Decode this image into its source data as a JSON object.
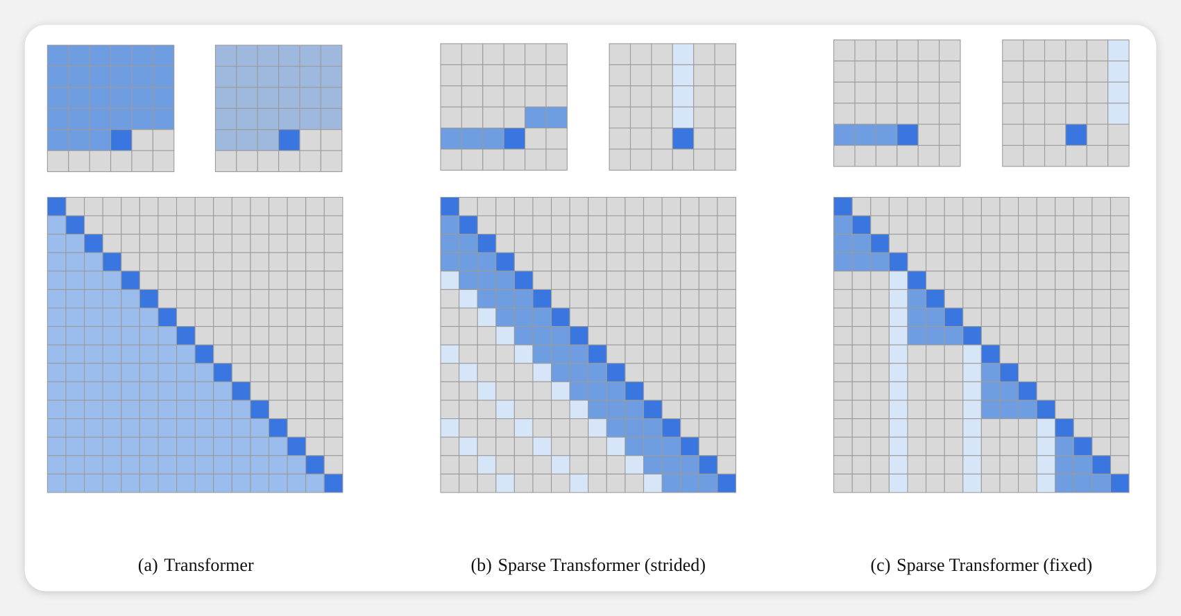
{
  "panels": [
    {
      "label": "(a)",
      "caption": "Transformer"
    },
    {
      "label": "(b)",
      "caption": "Sparse Transformer (strided)"
    },
    {
      "label": "(c)",
      "caption": "Sparse Transformer (fixed)"
    }
  ]
}
